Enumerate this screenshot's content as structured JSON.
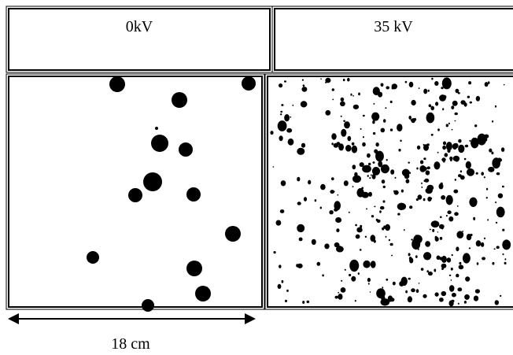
{
  "table": {
    "header": [
      "0kV",
      "35 kV"
    ]
  },
  "scale_label": "18 cm"
}
